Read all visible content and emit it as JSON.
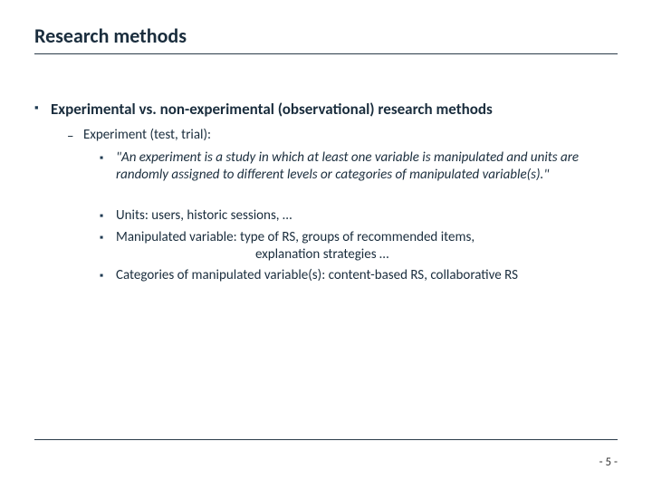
{
  "slide": {
    "title": "Research methods",
    "page_label": "- 5 -",
    "colors": {
      "text": "#1a2d3d",
      "rule": "#2b3c4a",
      "background": "#ffffff"
    },
    "bullets_glyphs": {
      "square": "▪",
      "dash": "–"
    },
    "content": {
      "l1": {
        "text": "Experimental vs. non-experimental (observational) research methods"
      },
      "l2": {
        "text": "Experiment (test, trial):"
      },
      "l3_quote": {
        "text": "\"An experiment is a study in which at least one variable is manipulated and units are randomly assigned to different levels or categories of manipulated variable(s).\""
      },
      "l3_units": {
        "text": "Units: users, historic sessions, …"
      },
      "l3_manip": {
        "text": "Manipulated variable: type of RS, groups of recommended items,"
      },
      "l3_manip_cont": {
        "text": "explanation strategies …"
      },
      "l3_cats": {
        "text": "Categories of manipulated variable(s): content-based RS, collaborative RS"
      }
    }
  }
}
